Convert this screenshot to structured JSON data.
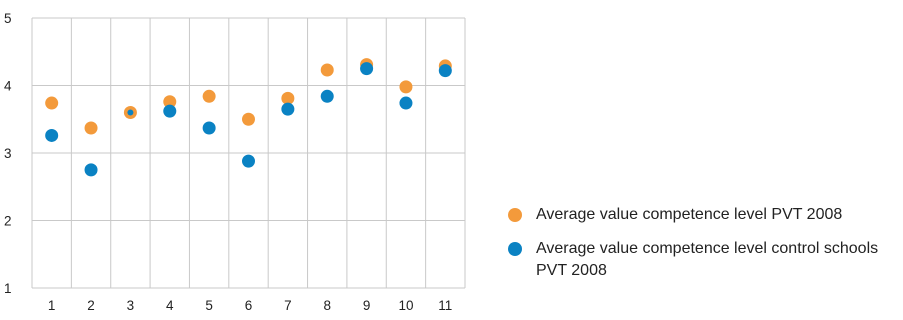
{
  "chart_data": {
    "type": "scatter",
    "title": "",
    "xlabel": "",
    "ylabel": "",
    "categories": [
      "1",
      "2",
      "3",
      "4",
      "5",
      "6",
      "7",
      "8",
      "9",
      "10",
      "11"
    ],
    "y_ticks": [
      "1",
      "2",
      "3",
      "4",
      "5"
    ],
    "ylim": [
      1,
      5
    ],
    "grid": true,
    "legend_position": "right",
    "series": [
      {
        "name": "Average value competence level PVT 2008",
        "color": "#f39a3b",
        "values": [
          3.74,
          3.37,
          3.6,
          3.76,
          3.84,
          3.5,
          3.81,
          4.23,
          4.31,
          3.98,
          4.29
        ]
      },
      {
        "name": "Average value competence level control schools PVT 2008",
        "color": "#0a82c3",
        "values": [
          3.26,
          2.75,
          3.6,
          3.62,
          3.37,
          2.88,
          3.65,
          3.84,
          4.25,
          3.74,
          4.22
        ]
      }
    ]
  }
}
